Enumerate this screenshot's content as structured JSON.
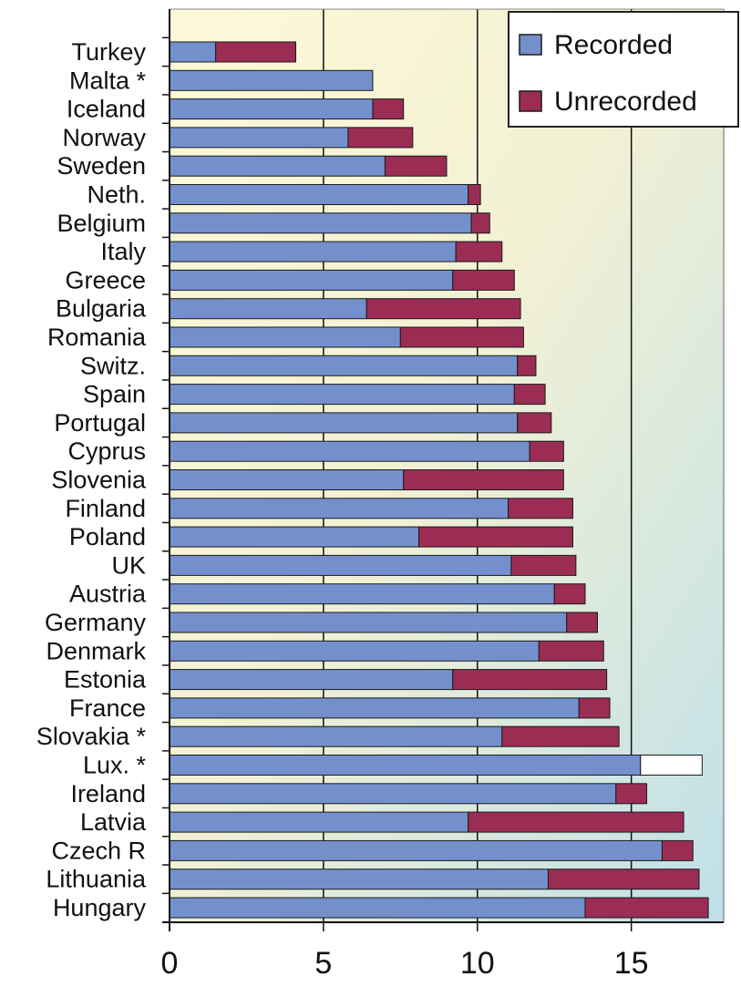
{
  "chart_data": {
    "type": "bar",
    "orientation": "horizontal",
    "stacked": true,
    "categories": [
      "Turkey",
      "Malta *",
      "Iceland",
      "Norway",
      "Sweden",
      "Neth.",
      "Belgium",
      "Italy",
      "Greece",
      "Bulgaria",
      "Romania",
      "Switz.",
      "Spain",
      "Portugal",
      "Cyprus",
      "Slovenia",
      "Finland",
      "Poland",
      "UK",
      "Austria",
      "Germany",
      "Denmark",
      "Estonia",
      "France",
      "Slovakia *",
      "Lux. *",
      "Ireland",
      "Latvia",
      "Czech R",
      "Lithuania",
      "Hungary"
    ],
    "series": [
      {
        "name": "Recorded",
        "color": "#7490cc",
        "values": [
          1.5,
          6.6,
          6.6,
          5.8,
          7.0,
          9.7,
          9.8,
          9.3,
          9.2,
          6.4,
          7.5,
          11.3,
          11.2,
          11.3,
          11.7,
          7.6,
          11.0,
          8.1,
          11.1,
          12.5,
          12.9,
          12.0,
          9.2,
          13.3,
          10.8,
          15.3,
          14.5,
          9.7,
          16.0,
          12.3,
          13.5
        ]
      },
      {
        "name": "Unrecorded",
        "color": "#9b2d55",
        "values": [
          2.6,
          0,
          1.0,
          2.1,
          2.0,
          0.4,
          0.6,
          1.5,
          2.0,
          5.0,
          4.0,
          0.6,
          1.0,
          1.1,
          1.1,
          5.2,
          2.1,
          5.0,
          2.1,
          1.0,
          1.0,
          2.1,
          5.0,
          1.0,
          3.8,
          2.0,
          1.0,
          7.0,
          1.0,
          4.9,
          4.0
        ]
      }
    ],
    "highlight": {
      "category": "Lux. *",
      "segment_color": "#ffffff"
    },
    "xlim": [
      0,
      18
    ],
    "xticks": [
      0,
      5,
      10,
      15
    ],
    "grid": true,
    "legend_placement": "top-right",
    "title": "",
    "xlabel": "",
    "ylabel": ""
  }
}
